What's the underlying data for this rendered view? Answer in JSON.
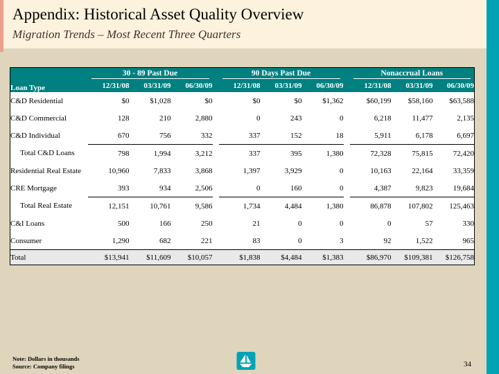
{
  "slide": {
    "title": "Appendix: Historical Asset Quality Overview",
    "subtitle": "Migration Trends – Most Recent Three Quarters",
    "page_number": "34",
    "footnotes": [
      "Note: Dollars in thousands",
      "Source: Company filings"
    ],
    "logo": "sailboat-logo"
  },
  "colors": {
    "title_band_bg": "#fdf2de",
    "slide_bg": "#ded5bc",
    "header_teal": "#008080",
    "right_bar_teal": "#00a2b3",
    "left_accent_pink": "#ee9e8d",
    "total_row_bg": "#e9e9e9",
    "subtitle_text": "#44322b"
  },
  "table": {
    "row_header": "Loan Type",
    "groups": [
      {
        "label": "30 - 89 Past Due",
        "columns": [
          "12/31/08",
          "03/31/09",
          "06/30/09"
        ]
      },
      {
        "label": "90 Days Past Due",
        "columns": [
          "12/31/08",
          "03/31/09",
          "06/30/09"
        ]
      },
      {
        "label": "Nonaccrual Loans",
        "columns": [
          "12/31/08",
          "03/31/09",
          "06/30/09"
        ]
      }
    ],
    "rows": [
      {
        "label": "C&D Residential",
        "indent": false,
        "underline_after": false,
        "total_row": false,
        "values": [
          "$0",
          "$1,028",
          "$0",
          "$0",
          "$0",
          "$1,362",
          "$60,199",
          "$58,160",
          "$63,588"
        ]
      },
      {
        "label": "C&D Commercial",
        "indent": false,
        "underline_after": false,
        "total_row": false,
        "values": [
          "128",
          "210",
          "2,880",
          "0",
          "243",
          "0",
          "6,218",
          "11,477",
          "2,135"
        ]
      },
      {
        "label": "C&D Individual",
        "indent": false,
        "underline_after": true,
        "total_row": false,
        "values": [
          "670",
          "756",
          "332",
          "337",
          "152",
          "18",
          "5,911",
          "6,178",
          "6,697"
        ]
      },
      {
        "label": "Total C&D Loans",
        "indent": true,
        "underline_after": false,
        "total_row": false,
        "values": [
          "798",
          "1,994",
          "3,212",
          "337",
          "395",
          "1,380",
          "72,328",
          "75,815",
          "72,420"
        ]
      },
      {
        "label": "Residential Real Estate",
        "indent": false,
        "underline_after": false,
        "total_row": false,
        "values": [
          "10,960",
          "7,833",
          "3,868",
          "1,397",
          "3,929",
          "0",
          "10,163",
          "22,164",
          "33,359"
        ]
      },
      {
        "label": "CRE Mortgage",
        "indent": false,
        "underline_after": true,
        "total_row": false,
        "values": [
          "393",
          "934",
          "2,506",
          "0",
          "160",
          "0",
          "4,387",
          "9,823",
          "19,684"
        ]
      },
      {
        "label": "Total Real Estate",
        "indent": true,
        "underline_after": false,
        "total_row": false,
        "values": [
          "12,151",
          "10,761",
          "9,586",
          "1,734",
          "4,484",
          "1,380",
          "86,878",
          "107,802",
          "125,463"
        ]
      },
      {
        "label": "C&I Loans",
        "indent": false,
        "underline_after": false,
        "total_row": false,
        "values": [
          "500",
          "166",
          "250",
          "21",
          "0",
          "0",
          "0",
          "57",
          "330"
        ]
      },
      {
        "label": "Consumer",
        "indent": false,
        "underline_after": false,
        "total_row": false,
        "values": [
          "1,290",
          "682",
          "221",
          "83",
          "0",
          "3",
          "92",
          "1,522",
          "965"
        ]
      },
      {
        "label": "Total",
        "indent": false,
        "underline_after": false,
        "total_row": true,
        "values": [
          "$13,941",
          "$11,609",
          "$10,057",
          "$1,838",
          "$4,484",
          "$1,383",
          "$86,970",
          "$109,381",
          "$126,758"
        ]
      }
    ]
  }
}
